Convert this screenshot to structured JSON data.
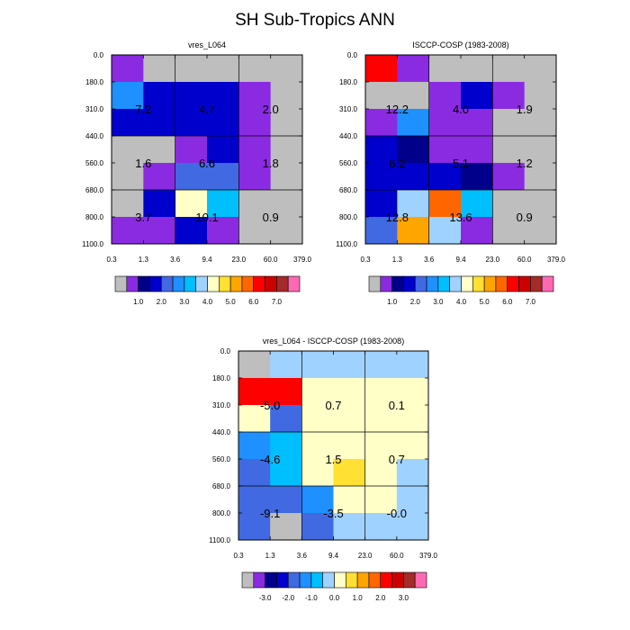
{
  "title": "SH Sub-Tropics ANN",
  "chart_data": {
    "type": "heatmap",
    "title": "SH Sub-Tropics ANN",
    "xticks": [
      "0.3",
      "1.3",
      "3.6",
      "9.4",
      "23.0",
      "60.0",
      "379.0"
    ],
    "yticks": [
      "0.0",
      "180.0",
      "310.0",
      "440.0",
      "560.0",
      "680.0",
      "800.0",
      "1100.0"
    ],
    "panels": [
      {
        "id": "model",
        "title": "vres_L064",
        "colorbar": "abs",
        "cells": [
          [
            1,
            0,
            0,
            0,
            0,
            0
          ],
          [
            5,
            3,
            3,
            3,
            1,
            0
          ],
          [
            3,
            3,
            3,
            3,
            1,
            0
          ],
          [
            0,
            0,
            1,
            3,
            1,
            0
          ],
          [
            0,
            1,
            4,
            4,
            1,
            0
          ],
          [
            0,
            3,
            8,
            6,
            0,
            0
          ],
          [
            1,
            1,
            3,
            1,
            0,
            0
          ]
        ],
        "box_values": [
          [
            "7.2",
            "4.7",
            "2.0"
          ],
          [
            "1.6",
            "6.6",
            "1.8"
          ],
          [
            "3.7",
            "10.1",
            "0.9"
          ]
        ]
      },
      {
        "id": "obs",
        "title": "ISCCP-COSP (1983-2008)",
        "colorbar": "abs",
        "cells": [
          [
            12,
            1,
            0,
            0,
            0,
            0
          ],
          [
            0,
            0,
            1,
            3,
            1,
            0
          ],
          [
            1,
            5,
            1,
            1,
            0,
            0
          ],
          [
            3,
            2,
            1,
            1,
            0,
            0
          ],
          [
            3,
            3,
            3,
            2,
            1,
            0
          ],
          [
            3,
            7,
            11,
            6,
            0,
            0
          ],
          [
            4,
            10,
            7,
            1,
            0,
            0
          ]
        ],
        "box_values": [
          [
            "12.2",
            "4.0",
            "1.9"
          ],
          [
            "6.2",
            "5.1",
            "1.2"
          ],
          [
            "12.8",
            "13.6",
            "0.9"
          ]
        ]
      },
      {
        "id": "diff",
        "title": "vres_L064 - ISCCP-COSP (1983-2008)",
        "colorbar": "diff",
        "cells": [
          [
            0,
            7,
            7,
            7,
            7,
            7
          ],
          [
            12,
            12,
            8,
            8,
            8,
            8
          ],
          [
            8,
            4,
            8,
            8,
            8,
            8
          ],
          [
            5,
            6,
            8,
            8,
            8,
            8
          ],
          [
            4,
            6,
            8,
            9,
            8,
            7
          ],
          [
            4,
            4,
            5,
            8,
            8,
            7
          ],
          [
            4,
            0,
            4,
            7,
            7,
            7
          ]
        ],
        "box_values": [
          [
            "-5.0",
            "0.7",
            "0.1"
          ],
          [
            "-4.6",
            "1.5",
            "0.7"
          ],
          [
            "-9.1",
            "-3.5",
            "-0.0"
          ]
        ]
      }
    ],
    "colorbars": {
      "abs": {
        "colors": [
          "#bebebe",
          "#8a2be2",
          "#00008b",
          "#0000cd",
          "#4169e1",
          "#1e90ff",
          "#00bfff",
          "#a0d2ff",
          "#ffffc8",
          "#ffe033",
          "#ffa500",
          "#ff6600",
          "#ff0000",
          "#cd0000",
          "#a52a2a",
          "#ff69b4"
        ],
        "labels": [
          "1.0",
          "2.0",
          "3.0",
          "4.0",
          "5.0",
          "6.0",
          "7.0"
        ],
        "label_after_index": [
          1,
          3,
          5,
          7,
          9,
          11,
          13
        ]
      },
      "diff": {
        "colors": [
          "#bebebe",
          "#8a2be2",
          "#00008b",
          "#0000cd",
          "#4169e1",
          "#1e90ff",
          "#00bfff",
          "#a0d2ff",
          "#ffffc8",
          "#ffe033",
          "#ffa500",
          "#ff6600",
          "#ff0000",
          "#cd0000",
          "#a52a2a",
          "#ff69b4"
        ],
        "labels": [
          "-3.0",
          "-2.0",
          "-1.0",
          "0.0",
          "1.0",
          "2.0",
          "3.0"
        ],
        "label_after_index": [
          1,
          3,
          5,
          7,
          9,
          11,
          13
        ]
      }
    }
  }
}
